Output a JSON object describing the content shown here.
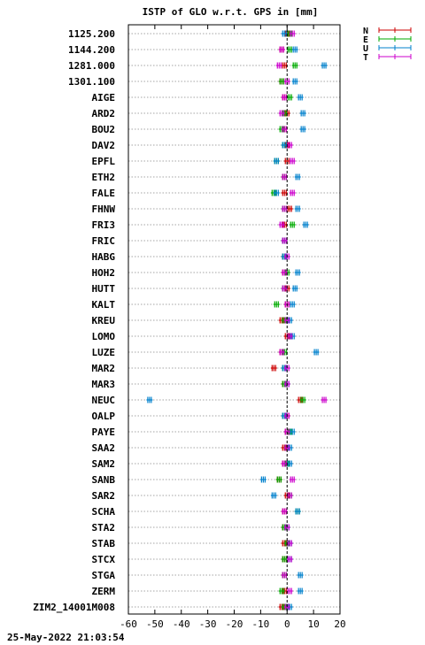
{
  "chart_data": {
    "type": "scatter",
    "title": "ISTP of GLO w.r.t. GPS in [mm]",
    "xlim": [
      -60,
      20
    ],
    "x_ticks": [
      -60,
      -50,
      -40,
      -30,
      -20,
      -10,
      0,
      10,
      20
    ],
    "x_tick_labels": [
      "-60",
      "-50",
      "-40",
      "-30",
      "-20",
      "-10",
      "0",
      "10",
      "20"
    ],
    "grid": true,
    "legend_position": "outside-top-right",
    "stations": [
      "1125.200",
      "1144.200",
      "1281.000",
      "1301.100",
      "AIGE",
      "ARD2",
      "BOU2",
      "DAV2",
      "EPFL",
      "ETH2",
      "FALE",
      "FHNW",
      "FRI3",
      "FRIC",
      "HABG",
      "HOH2",
      "HUTT",
      "KALT",
      "KREU",
      "LOMO",
      "LUZE",
      "MAR2",
      "MAR3",
      "NEUC",
      "OALP",
      "PAYE",
      "SAA2",
      "SAM2",
      "SANB",
      "SAR2",
      "SCHA",
      "STA2",
      "STAB",
      "STCX",
      "STGA",
      "ZERM",
      "ZIM2_14001M008"
    ],
    "series": [
      {
        "name": "N",
        "color": "#cc0000",
        "values": [
          0,
          -2,
          -1,
          -2,
          -1,
          0,
          -1,
          0,
          0,
          -1,
          -1,
          1,
          -1,
          -1,
          -1,
          -1,
          0,
          0,
          -2,
          0,
          -2,
          -5,
          -1,
          5,
          0,
          0,
          -1,
          -1,
          -3,
          0,
          -1,
          -1,
          -1,
          -1,
          -1,
          -1,
          -2
        ]
      },
      {
        "name": "E",
        "color": "#00aa00",
        "values": [
          1,
          1,
          3,
          -2,
          1,
          -1,
          -2,
          -1,
          -4,
          -1,
          -5,
          -1,
          2,
          -1,
          -1,
          0,
          -1,
          -4,
          -1,
          1,
          -1,
          -1,
          -1,
          6,
          -1,
          1,
          0,
          0,
          -3,
          1,
          4,
          -1,
          0,
          -1,
          -1,
          -2,
          -1
        ]
      },
      {
        "name": "U",
        "color": "#0080cc",
        "values": [
          -1,
          3,
          14,
          3,
          5,
          6,
          6,
          -1,
          -4,
          4,
          -4,
          4,
          7,
          -1,
          -1,
          4,
          3,
          2,
          1,
          2,
          11,
          -1,
          0,
          -52,
          -1,
          2,
          1,
          1,
          -9,
          -5,
          4,
          0,
          1,
          1,
          5,
          5,
          1
        ]
      },
      {
        "name": "T",
        "color": "#cc00cc",
        "values": [
          2,
          -2,
          -3,
          0,
          -1,
          -2,
          -1,
          1,
          2,
          -1,
          2,
          -1,
          -2,
          -1,
          0,
          -1,
          -1,
          0,
          0,
          1,
          -2,
          0,
          0,
          14,
          0,
          0,
          0,
          -1,
          2,
          1,
          -1,
          0,
          1,
          1,
          -1,
          1,
          0
        ]
      }
    ]
  },
  "footer": {
    "timestamp": "25-May-2022 21:03:54"
  }
}
